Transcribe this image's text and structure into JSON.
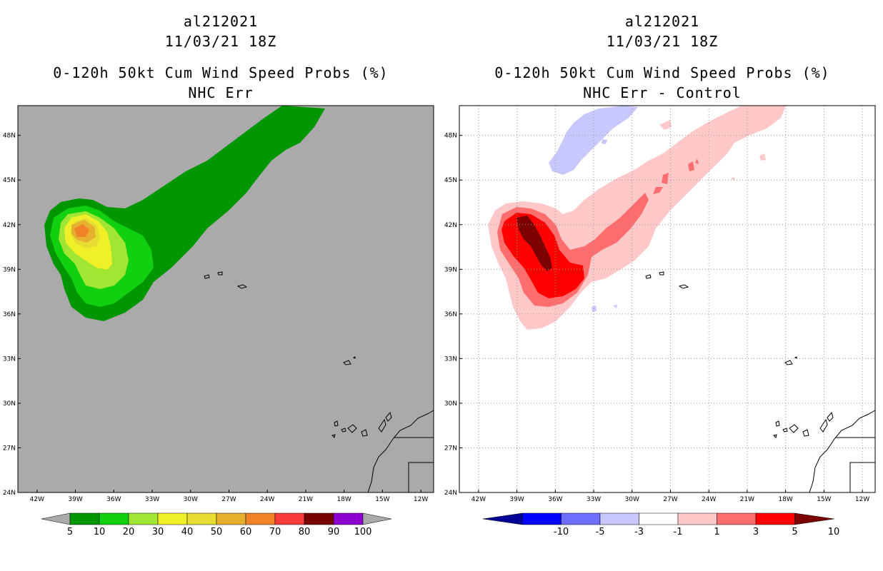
{
  "left_panel": {
    "storm_id": "al212021",
    "datetime": "11/03/21 18Z",
    "product": "0-120h 50kt Cum Wind Speed Probs (%)",
    "subtitle": "NHC Err",
    "background_color": "#aaaaaa",
    "colorbar": {
      "labels": [
        "5",
        "10",
        "20",
        "30",
        "40",
        "50",
        "60",
        "70",
        "80",
        "90",
        "100"
      ],
      "colors": [
        "#009600",
        "#10d010",
        "#a0e632",
        "#f0f028",
        "#e6dc32",
        "#e6af2d",
        "#f08228",
        "#fa3c3c",
        "#780000",
        "#8c00d2"
      ]
    }
  },
  "right_panel": {
    "storm_id": "al212021",
    "datetime": "11/03/21 18Z",
    "product": "0-120h 50kt Cum Wind Speed Probs (%)",
    "subtitle": "NHC Err - Control",
    "background_color": "#ffffff",
    "colorbar": {
      "labels": [
        "-10",
        "-5",
        "-3",
        "-1",
        "1",
        "3",
        "5",
        "10"
      ],
      "colors": [
        "#000096",
        "#0000ff",
        "#6e6eff",
        "#c8c8ff",
        "#ffffff",
        "#ffc8c8",
        "#ff6e6e",
        "#ff0000",
        "#7d0000"
      ]
    }
  },
  "map": {
    "lat_labels": [
      "48N",
      "45N",
      "42N",
      "39N",
      "36N",
      "33N",
      "30N",
      "27N",
      "24N"
    ],
    "lon_labels": [
      "42W",
      "39W",
      "36W",
      "33W",
      "30W",
      "27W",
      "24W",
      "21W",
      "18W",
      "15W",
      "12W"
    ],
    "lat_range": [
      24,
      50
    ],
    "lon_range": [
      -43.5,
      -11
    ]
  }
}
